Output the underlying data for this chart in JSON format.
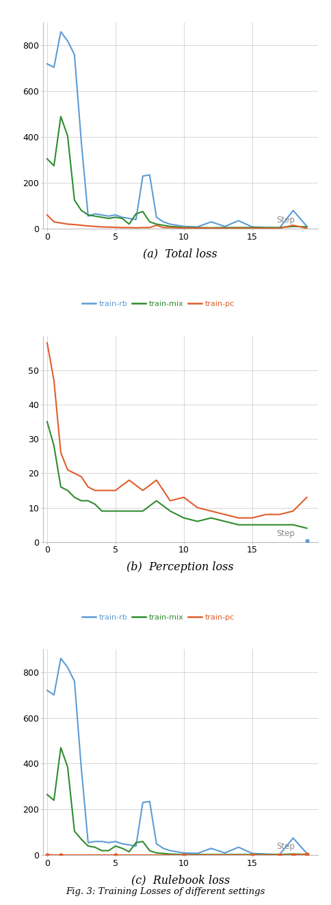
{
  "color_rb": "#5b9bd5",
  "color_mix": "#2e8b2e",
  "color_pc": "#e05c2a",
  "total_loss": {
    "rb": {
      "x": [
        0,
        0.5,
        1,
        1.5,
        2,
        2.5,
        3,
        3.5,
        4,
        4.5,
        5,
        5.5,
        6,
        6.5,
        7,
        7.5,
        8,
        8.5,
        9,
        9.5,
        10,
        11,
        12,
        13,
        14,
        15,
        16,
        17,
        18,
        19
      ],
      "y": [
        720,
        705,
        860,
        820,
        760,
        380,
        55,
        65,
        60,
        55,
        60,
        50,
        45,
        40,
        230,
        235,
        50,
        30,
        20,
        15,
        10,
        8,
        30,
        10,
        35,
        8,
        5,
        3,
        80,
        10
      ]
    },
    "mix": {
      "x": [
        0,
        0.5,
        1,
        1.5,
        2,
        2.5,
        3,
        3.5,
        4,
        4.5,
        5,
        5.5,
        6,
        6.5,
        7,
        7.5,
        8,
        8.5,
        9,
        9.5,
        10,
        11,
        12,
        13,
        14,
        15,
        16,
        17,
        18,
        19
      ],
      "y": [
        305,
        275,
        490,
        405,
        125,
        80,
        60,
        55,
        50,
        45,
        50,
        45,
        20,
        65,
        75,
        30,
        20,
        15,
        10,
        8,
        5,
        5,
        4,
        5,
        5,
        5,
        5,
        5,
        10,
        8
      ]
    },
    "pc": {
      "x": [
        0,
        0.5,
        1,
        1.5,
        2,
        2.5,
        3,
        3.5,
        4,
        4.5,
        5,
        5.5,
        6,
        6.5,
        7,
        7.5,
        8,
        8.5,
        9,
        9.5,
        10,
        11,
        12,
        13,
        14,
        15,
        16,
        17,
        18,
        19
      ],
      "y": [
        60,
        30,
        25,
        20,
        18,
        15,
        12,
        10,
        8,
        7,
        6,
        5,
        5,
        4,
        5,
        5,
        15,
        5,
        5,
        4,
        3,
        3,
        2,
        2,
        2,
        2,
        2,
        2,
        15,
        2
      ]
    },
    "ylim": [
      0,
      900
    ],
    "yticks": [
      0,
      200,
      400,
      600,
      800
    ],
    "xticks": [
      0,
      5,
      10,
      15
    ],
    "xlim": [
      -0.3,
      19.8
    ]
  },
  "perception_loss": {
    "rb": {
      "x": [
        19
      ],
      "y": [
        0.3
      ]
    },
    "mix": {
      "x": [
        0,
        0.5,
        1,
        1.5,
        2,
        2.5,
        3,
        3.5,
        4,
        5,
        6,
        7,
        8,
        9,
        10,
        11,
        12,
        13,
        14,
        15,
        16,
        17,
        18,
        19
      ],
      "y": [
        35,
        28,
        16,
        15,
        13,
        12,
        12,
        11,
        9,
        9,
        9,
        9,
        12,
        9,
        7,
        6,
        7,
        6,
        5,
        5,
        5,
        5,
        5,
        4
      ]
    },
    "pc": {
      "x": [
        0,
        0.5,
        1,
        1.5,
        2,
        2.5,
        3,
        3.5,
        4,
        5,
        6,
        7,
        8,
        9,
        10,
        11,
        12,
        13,
        14,
        15,
        16,
        17,
        18,
        19
      ],
      "y": [
        58,
        47,
        26,
        21,
        20,
        19,
        16,
        15,
        15,
        15,
        18,
        15,
        18,
        12,
        13,
        10,
        9,
        8,
        7,
        7,
        8,
        8,
        9,
        13
      ]
    },
    "ylim": [
      0,
      60
    ],
    "yticks": [
      0,
      10,
      20,
      30,
      40,
      50
    ],
    "xticks": [
      0,
      5,
      10,
      15
    ],
    "xlim": [
      -0.3,
      19.8
    ]
  },
  "rulebook_loss": {
    "rb": {
      "x": [
        0,
        0.5,
        1,
        1.5,
        2,
        2.5,
        3,
        3.5,
        4,
        4.5,
        5,
        5.5,
        6,
        6.5,
        7,
        7.5,
        8,
        8.5,
        9,
        9.5,
        10,
        11,
        12,
        13,
        14,
        15,
        16,
        17,
        18,
        19
      ],
      "y": [
        720,
        700,
        860,
        820,
        760,
        380,
        55,
        60,
        60,
        55,
        60,
        50,
        45,
        40,
        230,
        235,
        50,
        30,
        20,
        15,
        10,
        8,
        30,
        10,
        35,
        8,
        5,
        3,
        75,
        8
      ]
    },
    "mix": {
      "x": [
        0,
        0.5,
        1,
        1.5,
        2,
        2.5,
        3,
        3.5,
        4,
        4.5,
        5,
        5.5,
        6,
        6.5,
        7,
        7.5,
        8,
        8.5,
        9,
        9.5,
        10,
        11,
        12,
        13,
        14,
        15,
        16,
        17,
        18,
        19
      ],
      "y": [
        265,
        240,
        470,
        385,
        105,
        70,
        40,
        35,
        20,
        20,
        40,
        30,
        15,
        55,
        60,
        20,
        10,
        8,
        5,
        4,
        3,
        3,
        3,
        3,
        3,
        3,
        3,
        3,
        5,
        4
      ]
    },
    "pc": {
      "x": [
        0,
        1,
        5,
        10,
        15,
        17,
        18,
        19
      ],
      "y": [
        2,
        1,
        1,
        1,
        1,
        1,
        1,
        5
      ]
    },
    "ylim": [
      0,
      900
    ],
    "yticks": [
      0,
      200,
      400,
      600,
      800
    ],
    "xticks": [
      0,
      5,
      10,
      15
    ],
    "xlim": [
      -0.3,
      19.8
    ]
  },
  "legend_labels": [
    "train-rb",
    "train-mix",
    "train-pc"
  ],
  "step_text": "Step",
  "subplot_captions": [
    "(a)  Total loss",
    "(b)  Perception loss",
    "(c)  Rulebook loss"
  ],
  "fig_caption": "Fig. 3: Training Losses of different settings"
}
